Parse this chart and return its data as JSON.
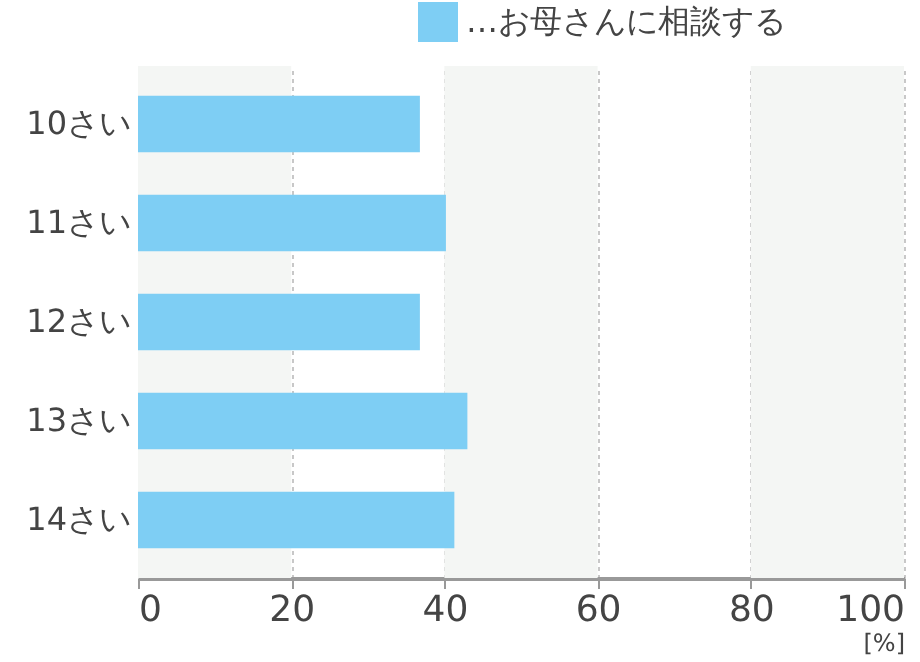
{
  "chart_data": {
    "type": "bar",
    "orientation": "horizontal",
    "categories": [
      "10さい",
      "11さい",
      "12さい",
      "13さい",
      "14さい"
    ],
    "series": [
      {
        "name": "…お母さんに相談する",
        "color": "#7ecef4",
        "values": [
          36.8,
          40.2,
          36.8,
          43.0,
          41.3
        ]
      }
    ],
    "xlabel": "[%]",
    "xlim": [
      0,
      100
    ],
    "xticks": [
      0,
      20,
      40,
      60,
      80,
      100
    ],
    "bands": [
      {
        "axis": "x",
        "from": 0,
        "to": 20,
        "color": "#f4f6f4"
      },
      {
        "axis": "x",
        "from": 40,
        "to": 60,
        "color": "#f4f6f4"
      },
      {
        "axis": "x",
        "from": 80,
        "to": 100,
        "color": "#f4f6f4"
      }
    ],
    "grid": "x",
    "legend": "top right"
  }
}
